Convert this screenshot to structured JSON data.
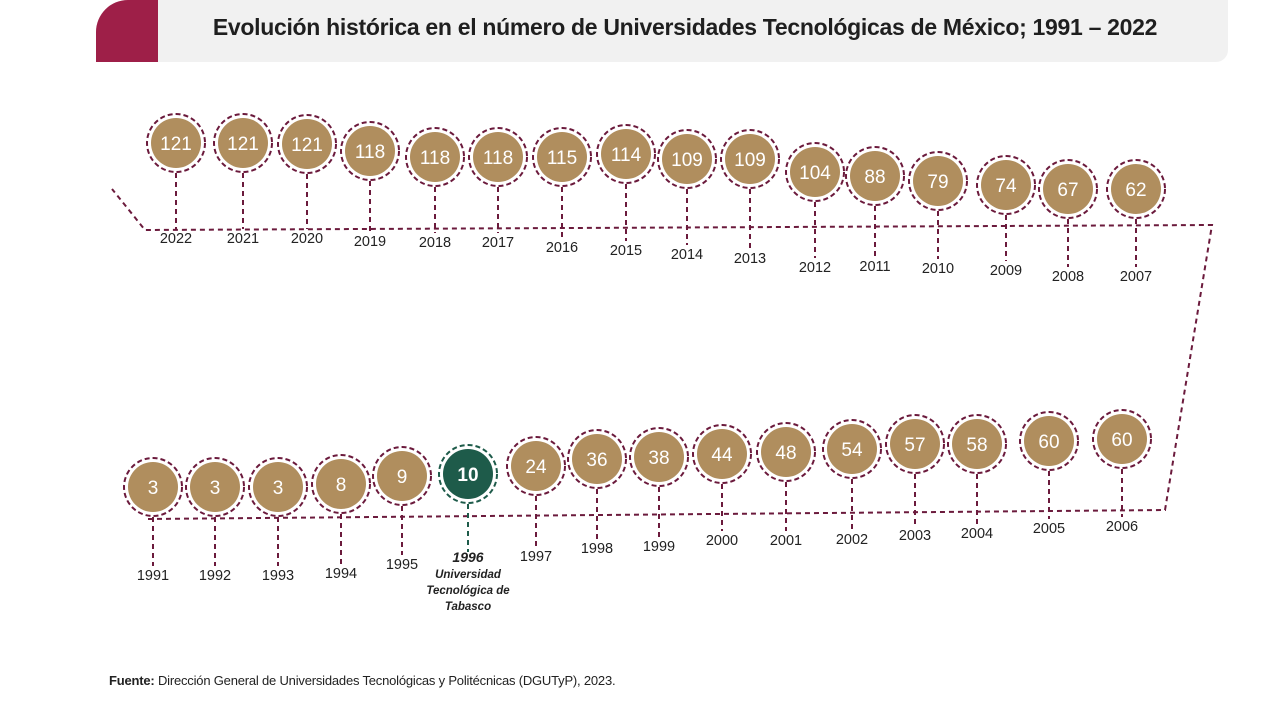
{
  "header": {
    "title": "Evolución histórica en el número de Universidades Tecnológicas de México; 1991 – 2022"
  },
  "footer": {
    "source_label": "Fuente:",
    "source_text": "Dirección General de Universidades Tecnológicas y Politécnicas (DGUTyP), 2023."
  },
  "colors": {
    "accent": "#9e1f48",
    "bubble": "#b08e5e",
    "highlight": "#1e5b4a",
    "dashed_line": "#6b1a3c"
  },
  "chart_data": {
    "type": "timeline",
    "title": "Evolución histórica en el número de Universidades Tecnológicas de México; 1991 – 2022",
    "x": [
      1991,
      1992,
      1993,
      1994,
      1995,
      1996,
      1997,
      1998,
      1999,
      2000,
      2001,
      2002,
      2003,
      2004,
      2005,
      2006,
      2007,
      2008,
      2009,
      2010,
      2011,
      2012,
      2013,
      2014,
      2015,
      2016,
      2017,
      2018,
      2019,
      2020,
      2021,
      2022
    ],
    "values": [
      3,
      3,
      3,
      8,
      9,
      10,
      24,
      36,
      38,
      44,
      48,
      54,
      57,
      58,
      60,
      60,
      62,
      67,
      74,
      79,
      88,
      104,
      109,
      109,
      114,
      115,
      118,
      118,
      118,
      121,
      121,
      121
    ],
    "highlight": {
      "year": 1996,
      "year_label": "1996",
      "note_lines": [
        "Universidad",
        "Tecnológica de",
        "Tabasco"
      ]
    }
  }
}
